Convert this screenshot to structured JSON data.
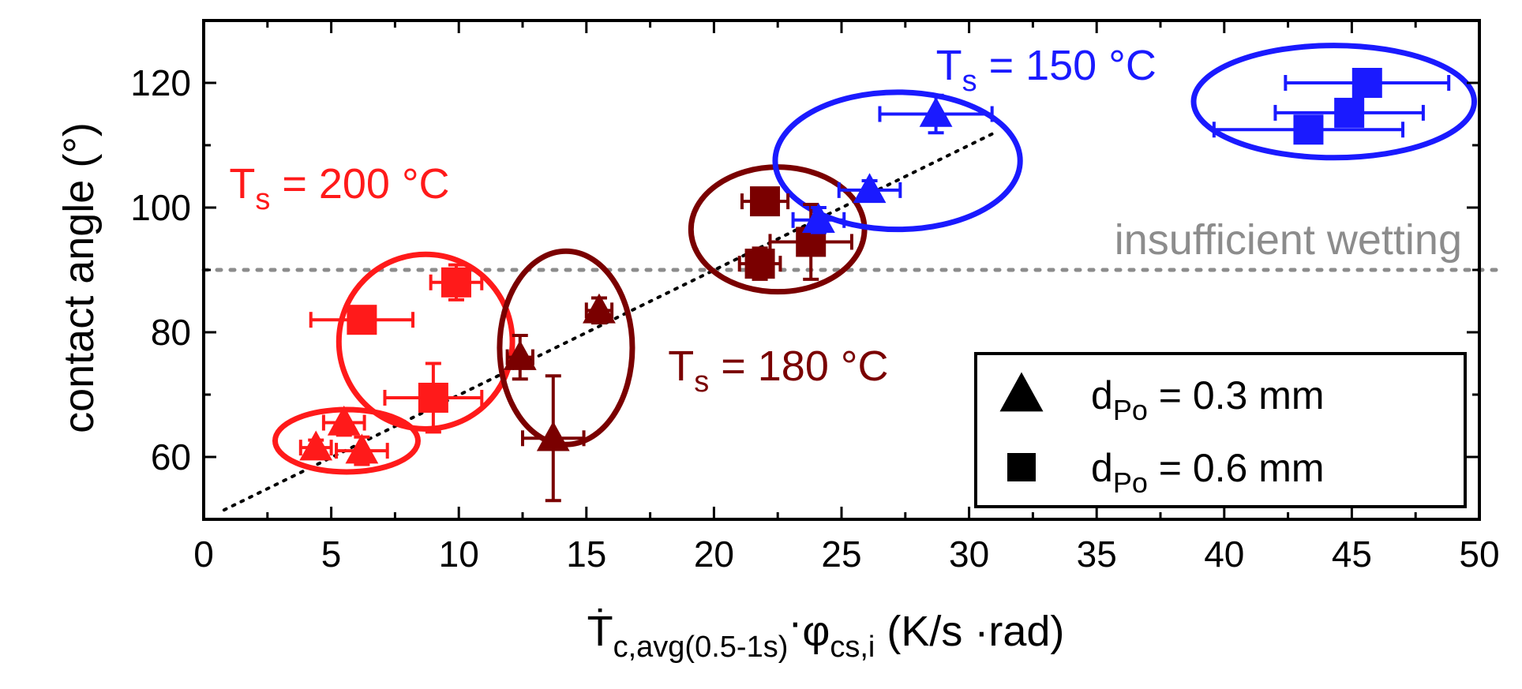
{
  "chart_data": {
    "type": "scatter",
    "xlabel": {
      "main": "Ṫ",
      "sub1": "c,avg(0.5-1s)",
      "dot": "·",
      "phi": "φ",
      "sub2": "cs,i",
      "unit": " (K/s ·rad)"
    },
    "ylabel": "contact angle (°)",
    "xlim": [
      0,
      50
    ],
    "ylim": [
      50,
      130
    ],
    "xticks": [
      0,
      5,
      10,
      15,
      20,
      25,
      30,
      35,
      40,
      45,
      50
    ],
    "yticks": [
      60,
      80,
      100,
      120
    ],
    "colors": {
      "ts150": "#1a1aff",
      "ts180": "#7a0000",
      "ts200": "#ff1a1a",
      "axis": "#000000",
      "ref": "#8c8c8c",
      "trend": "#000000"
    },
    "reference_line": {
      "y": 90,
      "label": "insufficient wetting"
    },
    "trend_line": {
      "x": [
        0.8,
        31
      ],
      "y": [
        51.5,
        112
      ]
    },
    "groups": [
      {
        "name": "ts200",
        "label_main": "T",
        "label_sub": "s",
        "label_rest": " = 200 °C",
        "label_anchor": [
          1,
          101.5
        ],
        "color": "#ff1a1a",
        "points": [
          {
            "shape": "triangle",
            "x": 4.4,
            "y": 61.5,
            "xerr": 0.6,
            "yerr": 1.2
          },
          {
            "shape": "triangle",
            "x": 5.5,
            "y": 65.5,
            "xerr": 0.8,
            "yerr": 2.0
          },
          {
            "shape": "triangle",
            "x": 6.2,
            "y": 61.0,
            "xerr": 1.0,
            "yerr": 2.2
          },
          {
            "shape": "square",
            "x": 6.2,
            "y": 82.0,
            "xerr": 2.0,
            "yerr": 0.5
          },
          {
            "shape": "square",
            "x": 9.9,
            "y": 88.0,
            "xerr": 1.0,
            "yerr": 2.8
          },
          {
            "shape": "square",
            "x": 9.0,
            "y": 69.5,
            "xerr": 1.9,
            "yerr": 5.5
          }
        ],
        "ellipses": [
          {
            "cx": 5.6,
            "cy": 62.6,
            "rx": 2.8,
            "ry": 5.0
          },
          {
            "cx": 8.7,
            "cy": 78.5,
            "rx": 3.4,
            "ry": 14.0
          }
        ]
      },
      {
        "name": "ts180",
        "label_main": "T",
        "label_sub": "s",
        "label_rest": " = 180 °C",
        "label_anchor": [
          18.2,
          72.3
        ],
        "color": "#7a0000",
        "points": [
          {
            "shape": "triangle",
            "x": 12.4,
            "y": 76.0,
            "xerr": 0.5,
            "yerr": 3.5
          },
          {
            "shape": "triangle",
            "x": 13.7,
            "y": 63.0,
            "xerr": 1.2,
            "yerr": 10.0
          },
          {
            "shape": "triangle",
            "x": 15.5,
            "y": 83.5,
            "xerr": 0.5,
            "yerr": 2.0
          },
          {
            "shape": "square",
            "x": 22.0,
            "y": 101.0,
            "xerr": 0.9,
            "yerr": 1.0
          },
          {
            "shape": "square",
            "x": 21.8,
            "y": 91.0,
            "xerr": 0.8,
            "yerr": 2.5
          },
          {
            "shape": "square",
            "x": 23.8,
            "y": 94.5,
            "xerr": 1.6,
            "yerr": 6.0
          }
        ],
        "ellipses": [
          {
            "cx": 14.2,
            "cy": 77.5,
            "rx": 2.6,
            "ry": 15.5
          },
          {
            "cx": 22.5,
            "cy": 96.5,
            "rx": 3.4,
            "ry": 10.0
          }
        ]
      },
      {
        "name": "ts150",
        "label_main": "T",
        "label_sub": "s",
        "label_rest": " = 150 °C",
        "label_anchor": [
          28.7,
          120.5
        ],
        "color": "#1a1aff",
        "points": [
          {
            "shape": "triangle",
            "x": 24.1,
            "y": 98.0,
            "xerr": 1.0,
            "yerr": 2.0
          },
          {
            "shape": "triangle",
            "x": 26.1,
            "y": 102.8,
            "xerr": 1.2,
            "yerr": 1.5
          },
          {
            "shape": "triangle",
            "x": 28.7,
            "y": 115.0,
            "xerr": 2.2,
            "yerr": 3.0
          },
          {
            "shape": "square",
            "x": 45.6,
            "y": 120.0,
            "xerr": 3.2,
            "yerr": 1.2
          },
          {
            "shape": "square",
            "x": 44.9,
            "y": 115.2,
            "xerr": 2.9,
            "yerr": 1.5
          },
          {
            "shape": "square",
            "x": 43.3,
            "y": 112.5,
            "xerr": 3.7,
            "yerr": 1.2
          }
        ],
        "ellipses": [
          {
            "cx": 27.2,
            "cy": 107.5,
            "rx": 4.8,
            "ry": 11.0
          },
          {
            "cx": 44.3,
            "cy": 117.0,
            "rx": 5.5,
            "ry": 9.0
          }
        ]
      }
    ],
    "legend": {
      "position": "bottom-right",
      "entries": [
        {
          "shape": "triangle",
          "main": "d",
          "sub": "Po",
          "rest": " = 0.3 mm"
        },
        {
          "shape": "square",
          "main": "d",
          "sub": "Po",
          "rest": " = 0.6 mm"
        }
      ]
    }
  }
}
